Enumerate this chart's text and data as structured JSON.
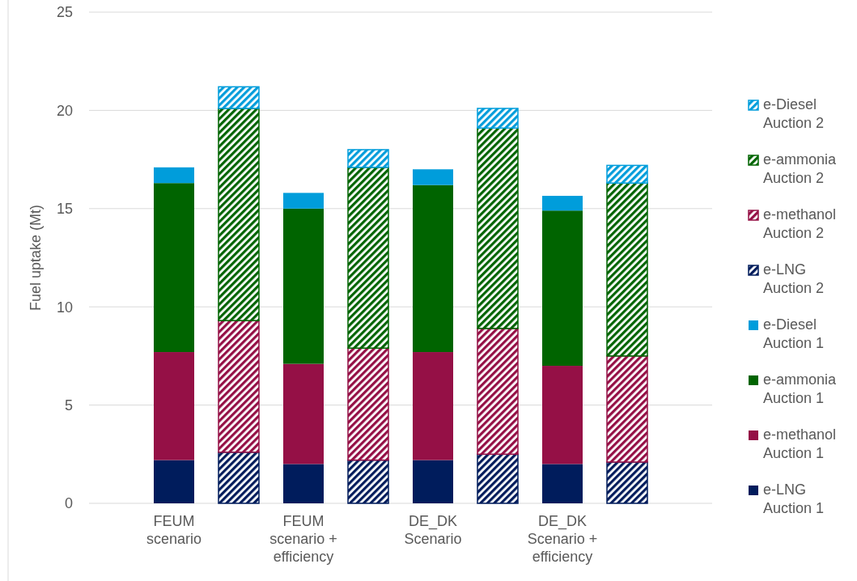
{
  "chart_data": {
    "type": "bar",
    "stacked": true,
    "ylabel": "Fuel uptake (Mt)",
    "categories": [
      "FEUM scenario",
      null,
      "FEUM scenario + efficiency",
      null,
      "DE_DK Scenario",
      null,
      "DE_DK Scenario + efficiency",
      null
    ],
    "ylim": [
      0,
      25
    ],
    "yticks": [
      0,
      5,
      10,
      15,
      20,
      25
    ],
    "grid": "y",
    "legend": "right",
    "series": [
      {
        "name": "e-LNG Auction 1",
        "color": "#001c5c",
        "values": [
          2.2,
          null,
          2.0,
          null,
          2.2,
          null,
          2.0,
          null
        ]
      },
      {
        "name": "e-methanol Auction 1",
        "color": "#951046",
        "values": [
          5.5,
          null,
          5.1,
          null,
          5.5,
          null,
          5.0,
          null
        ]
      },
      {
        "name": "e-ammonia Auction 1",
        "color": "#006400",
        "values": [
          8.6,
          null,
          7.9,
          null,
          8.5,
          null,
          7.9,
          null
        ]
      },
      {
        "name": "e-Diesel Auction 1",
        "color": "#009ddb",
        "values": [
          0.8,
          null,
          0.8,
          null,
          0.8,
          null,
          0.75,
          null
        ]
      },
      {
        "name": "e-LNG Auction 2",
        "color": "#001c5c",
        "values": [
          null,
          2.6,
          null,
          2.2,
          null,
          2.5,
          null,
          2.1
        ]
      },
      {
        "name": "e-methanol Auction 2",
        "color": "#951046",
        "values": [
          null,
          6.7,
          null,
          5.7,
          null,
          6.4,
          null,
          5.4
        ]
      },
      {
        "name": "e-ammonia Auction 2",
        "color": "#006400",
        "values": [
          null,
          10.8,
          null,
          9.2,
          null,
          10.2,
          null,
          8.8
        ]
      },
      {
        "name": "e-Diesel Auction 2",
        "color": "#009ddb",
        "values": [
          null,
          1.1,
          null,
          0.9,
          null,
          1.0,
          null,
          0.9
        ]
      }
    ]
  }
}
